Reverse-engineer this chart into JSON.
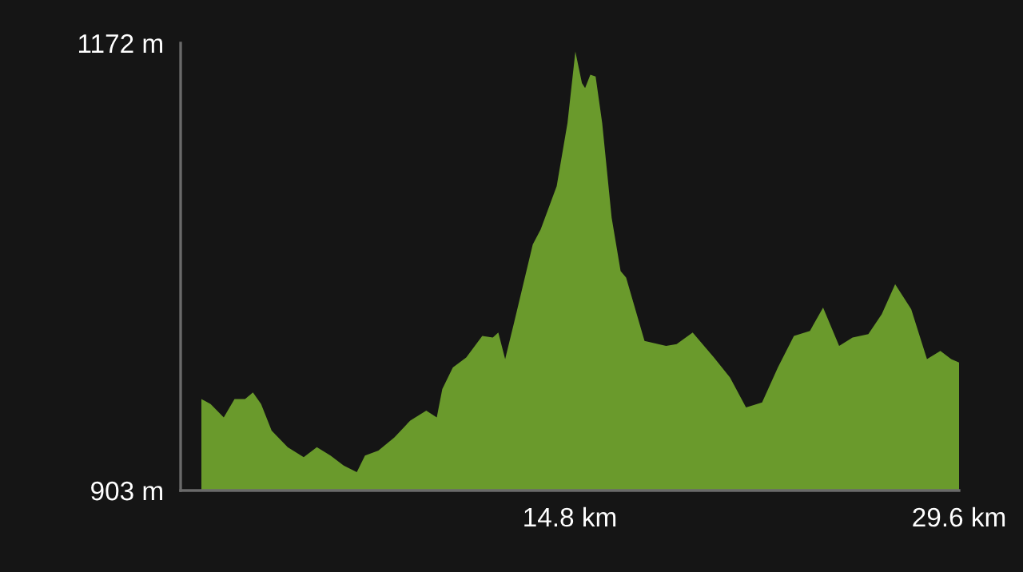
{
  "chart_data": {
    "type": "area",
    "relative": false,
    "x": [
      0.79,
      1.14,
      1.64,
      2.05,
      2.45,
      2.75,
      3.06,
      3.46,
      4.07,
      4.68,
      5.18,
      5.7,
      6.2,
      6.7,
      7.01,
      7.52,
      8.13,
      8.73,
      9.34,
      9.74,
      9.95,
      10.35,
      10.86,
      11.47,
      11.87,
      12.08,
      12.34,
      12.68,
      13.39,
      13.69,
      14.3,
      14.71,
      15.01,
      15.26,
      15.38,
      15.58,
      15.78,
      16.03,
      16.39,
      16.73,
      16.94,
      17.64,
      18.46,
      18.86,
      19.47,
      20.28,
      20.89,
      21.5,
      22.11,
      22.71,
      23.32,
      23.93,
      24.43,
      25.04,
      25.55,
      26.15,
      26.66,
      27.17,
      27.78,
      28.38,
      28.89,
      29.3,
      29.6
    ],
    "series": [
      {
        "color": "#6a9a2c",
        "values": [
          958,
          955,
          947,
          958,
          958,
          962,
          955,
          939,
          929,
          923,
          929,
          924,
          918,
          914,
          924,
          927,
          935,
          945,
          951,
          947,
          964,
          977,
          983,
          996,
          995,
          998,
          982,
          1004,
          1051,
          1060,
          1086,
          1124,
          1167,
          1148,
          1145,
          1153,
          1152,
          1124,
          1067,
          1035,
          1031,
          993,
          990,
          991,
          998,
          983,
          971,
          953,
          956,
          977,
          996,
          999,
          1013,
          990,
          995,
          997,
          1009,
          1027,
          1012,
          982,
          987,
          982,
          980
        ]
      }
    ],
    "xlim": [
      0,
      29.6
    ],
    "xticks": [
      {
        "value": 14.8,
        "label": "14.8 km"
      },
      {
        "value": 29.6,
        "label": "29.6 km"
      }
    ],
    "ylim": [
      903,
      1172
    ],
    "yticks": [
      {
        "value": 903,
        "label": "903 m"
      },
      {
        "value": 1172,
        "label": "1172 m"
      }
    ]
  }
}
